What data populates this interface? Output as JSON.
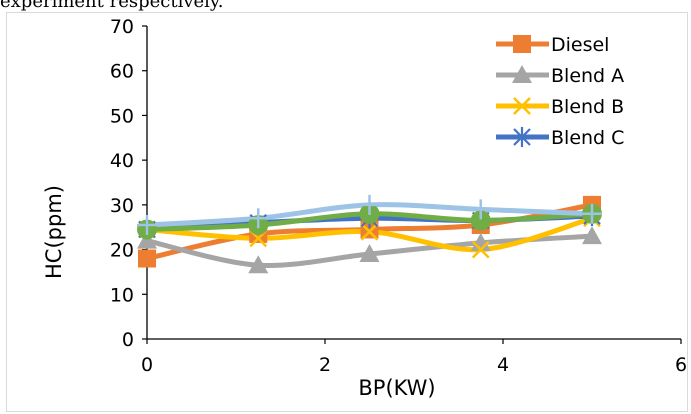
{
  "header_text": "experiment respectively.",
  "chart_data": {
    "type": "scatter",
    "xlabel": "BP(KW)",
    "ylabel": "HC(ppm)",
    "xlim": [
      0,
      6
    ],
    "ylim": [
      0,
      70
    ],
    "x_ticks": [
      "0",
      "2",
      "4",
      "6"
    ],
    "y_ticks": [
      "0",
      "10",
      "20",
      "30",
      "40",
      "50",
      "60",
      "70"
    ],
    "grid": false,
    "legend_position": "top-right",
    "x": [
      0,
      1.25,
      2.5,
      3.75,
      5
    ],
    "series": [
      {
        "name": "Diesel",
        "color": "#ED7D31",
        "marker": "square",
        "values": [
          18,
          23.5,
          24.5,
          25.5,
          30
        ],
        "in_legend": true
      },
      {
        "name": "Blend A",
        "color": "#A5A5A5",
        "marker": "triangle",
        "values": [
          22,
          16.5,
          19,
          21.5,
          23
        ],
        "in_legend": true
      },
      {
        "name": "Blend B",
        "color": "#FFC000",
        "marker": "x",
        "values": [
          24.5,
          22.5,
          24,
          20,
          27
        ],
        "in_legend": true
      },
      {
        "name": "Blend C",
        "color": "#4472C4",
        "marker": "star",
        "values": [
          24.5,
          26,
          27,
          26.5,
          27.5
        ],
        "in_legend": true
      },
      {
        "name": "",
        "color": "#70AD47",
        "marker": "circle",
        "values": [
          24.5,
          25.5,
          28,
          26.5,
          28
        ],
        "in_legend": false
      },
      {
        "name": "",
        "color": "#9DC3E6",
        "marker": "plus",
        "values": [
          25.5,
          27,
          30,
          29,
          28
        ],
        "in_legend": false
      }
    ]
  }
}
